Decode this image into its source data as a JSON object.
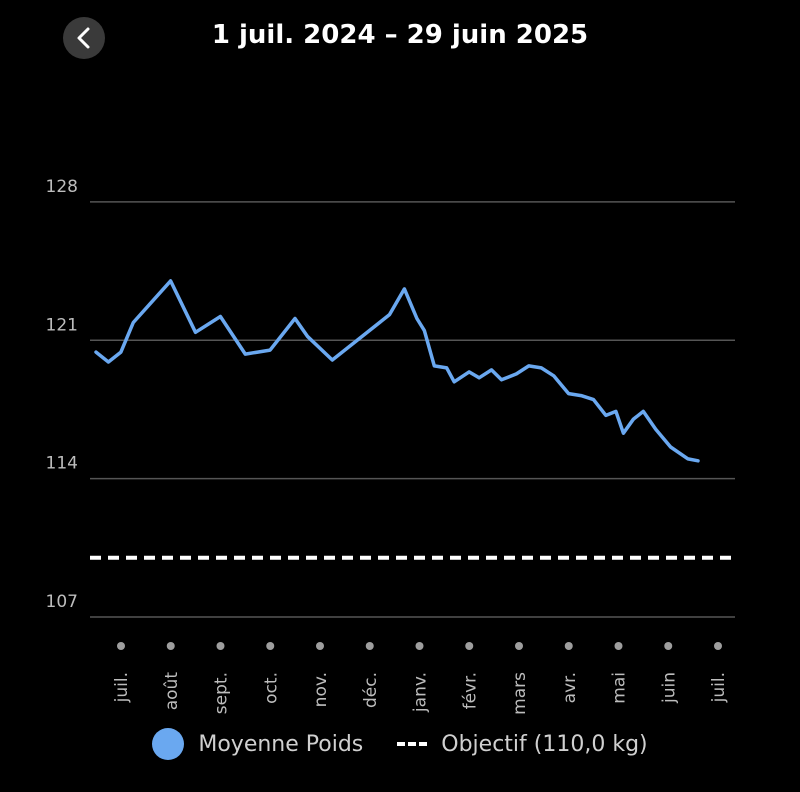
{
  "header": {
    "title": "1 juil. 2024 – 29 juin 2025",
    "back_icon": "chevron-left-icon"
  },
  "colors": {
    "background": "#000000",
    "series": "#6aa8f0",
    "grid": "#555555",
    "goal": "#ffffff",
    "axis_text": "#bdbdbd",
    "button_bg": "#3a3a3a"
  },
  "legend": {
    "series_label": "Moyenne Poids",
    "goal_label": "Objectif (110,0 kg)"
  },
  "chart_data": {
    "type": "line",
    "ylim": [
      107,
      135
    ],
    "yticks": [
      128,
      121,
      114,
      107
    ],
    "grid": true,
    "legend_position": "bottom",
    "goal": 110,
    "month_ticks": [
      "juil.",
      "août",
      "sept.",
      "oct.",
      "nov.",
      "déc.",
      "janv.",
      "févr.",
      "mars",
      "avr.",
      "mai",
      "juin",
      "juil."
    ],
    "series": [
      {
        "name": "Moyenne Poids",
        "x": [
          0.0,
          0.25,
          0.5,
          0.75,
          1.0,
          1.5,
          2.0,
          2.5,
          3.0,
          3.25,
          3.5,
          4.0,
          4.25,
          4.75,
          5.25,
          5.75,
          5.9,
          6.2,
          6.45,
          6.6,
          6.8,
          7.05,
          7.2,
          7.5,
          7.7,
          7.95,
          8.15,
          8.45,
          8.7,
          8.95,
          9.2,
          9.5,
          9.75,
          10.0,
          10.25,
          10.45,
          10.6,
          10.8,
          11.0,
          11.25,
          11.55,
          11.9,
          12.1
        ],
        "values": [
          120.4,
          119.9,
          120.4,
          121.9,
          122.6,
          124.0,
          121.4,
          122.2,
          120.3,
          120.4,
          120.5,
          122.1,
          121.2,
          120.0,
          121.0,
          122.0,
          122.3,
          123.6,
          122.1,
          121.5,
          119.7,
          119.6,
          118.9,
          119.4,
          119.1,
          119.5,
          119.0,
          119.3,
          119.7,
          119.6,
          119.2,
          118.3,
          118.2,
          118.0,
          117.2,
          117.4,
          116.3,
          117.0,
          117.4,
          116.5,
          115.6,
          115.0,
          114.9
        ]
      }
    ]
  }
}
